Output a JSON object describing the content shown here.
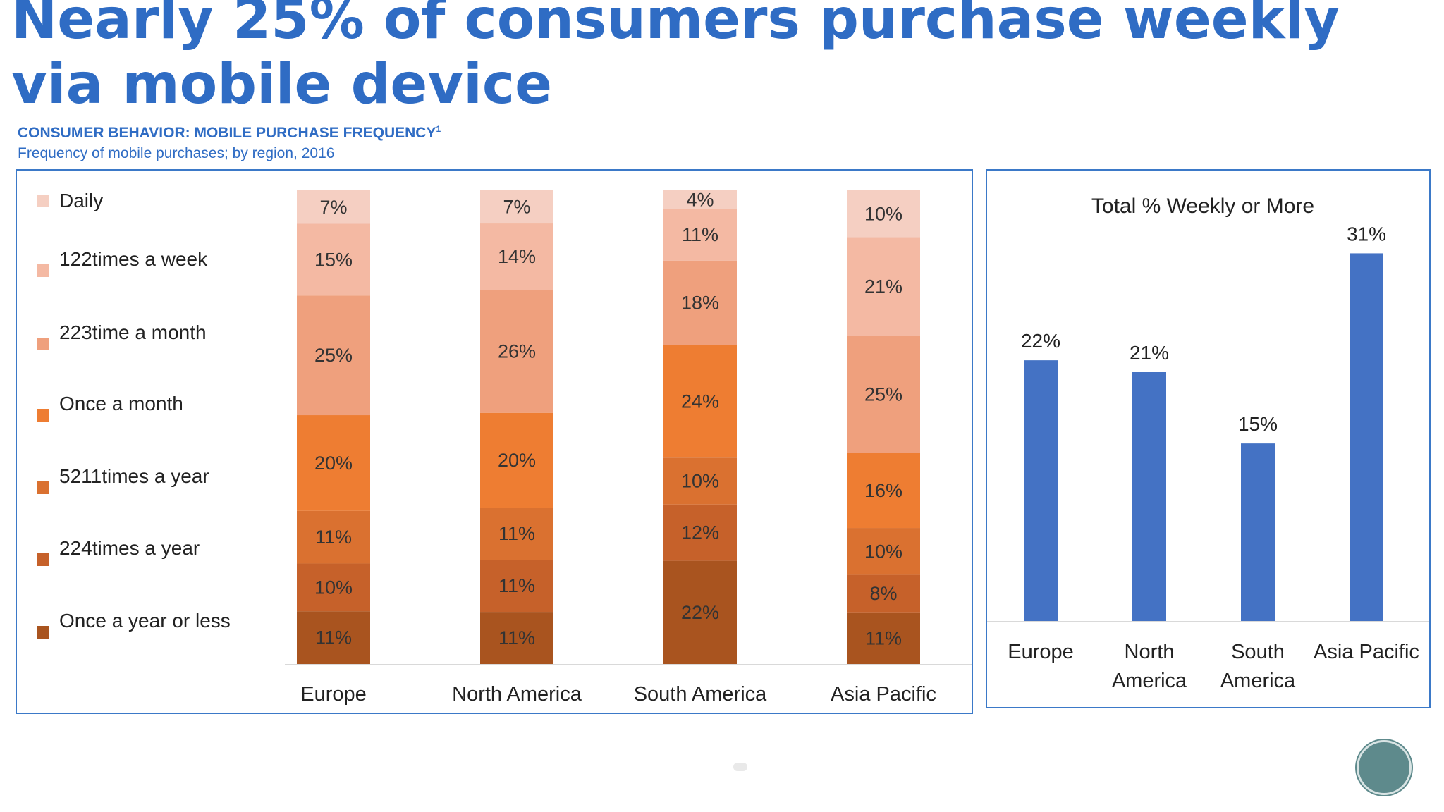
{
  "headline": [
    "Nearly 25% of consumers purchase weekly",
    "via mobile device"
  ],
  "chart_header": {
    "title": "CONSUMER BEHAVIOR: MOBILE PURCHASE FREQUENCY",
    "footnote_mark": "1",
    "subtitle": "Frequency of mobile purchases; by region, 2016"
  },
  "colors": {
    "accent": "#2f6cc4",
    "bar_blue": "#4472c4",
    "segments": [
      "#f5cfc2",
      "#f4b9a3",
      "#efa07d",
      "#ee7d32",
      "#da7130",
      "#c6612a",
      "#a9541f"
    ]
  },
  "chart_data": [
    {
      "type": "bar",
      "stacked": true,
      "categories": [
        "Europe",
        "North America",
        "South America",
        "Asia Pacific"
      ],
      "legend_position": "left",
      "series": [
        {
          "name": "Daily",
          "values": [
            7,
            7,
            4,
            10
          ]
        },
        {
          "name": "122times a week",
          "values": [
            15,
            14,
            11,
            21
          ]
        },
        {
          "name": "223time a month",
          "values": [
            25,
            26,
            18,
            25
          ]
        },
        {
          "name": "Once a month",
          "values": [
            20,
            20,
            24,
            16
          ]
        },
        {
          "name": "5211times a year",
          "values": [
            11,
            11,
            10,
            10
          ]
        },
        {
          "name": "224times a year",
          "values": [
            10,
            11,
            12,
            8
          ]
        },
        {
          "name": "Once a year or less",
          "values": [
            11,
            11,
            22,
            11
          ]
        }
      ],
      "value_suffix": "%",
      "grid": false
    },
    {
      "type": "bar",
      "title": "Total % Weekly or More",
      "categories": [
        "Europe",
        "North America",
        "South America",
        "Asia Pacific"
      ],
      "category_lines": [
        [
          "Europe"
        ],
        [
          "North",
          "America"
        ],
        [
          "South",
          "America"
        ],
        [
          "Asia Pacific"
        ]
      ],
      "values": [
        22,
        21,
        15,
        31
      ],
      "value_suffix": "%",
      "ylim": [
        0,
        35
      ],
      "grid": false
    }
  ]
}
